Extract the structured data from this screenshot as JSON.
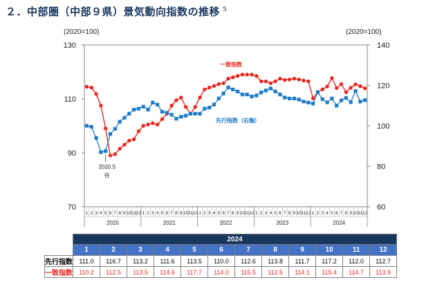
{
  "title": "２．中部圏（中部９県）景気動向指数の推移",
  "title_note": "5",
  "chart_data": {
    "type": "line",
    "left_axis_unit": "(2020=100)",
    "right_axis_unit": "(2020=100)",
    "left_ylim": [
      70,
      130
    ],
    "left_ticks": [
      "130",
      "110",
      "90",
      "70"
    ],
    "right_ylim": [
      60,
      140
    ],
    "right_ticks": [
      "140",
      "120",
      "100",
      "80",
      "60"
    ],
    "month_labels": [
      "1",
      "2",
      "3",
      "4",
      "5",
      "6",
      "7",
      "8",
      "9",
      "10",
      "11",
      "12"
    ],
    "years": [
      "2020",
      "2021",
      "2022",
      "2023",
      "2024"
    ],
    "annotation_line1": "2020.5",
    "annotation_line2": "谷",
    "series": [
      {
        "name": "一致指数",
        "axis": "left",
        "color": "#e8271f",
        "values": [
          114.5,
          114.2,
          111.8,
          107.5,
          99.0,
          89.0,
          89.5,
          91.5,
          93.0,
          94.5,
          95.0,
          98.0,
          100.0,
          100.5,
          101.0,
          100.5,
          102.5,
          104.5,
          107.5,
          109.5,
          110.5,
          107.0,
          104.5,
          107.0,
          110.5,
          113.5,
          114.2,
          114.8,
          115.5,
          115.8,
          117.5,
          118.0,
          118.5,
          119.0,
          119.0,
          119.0,
          118.5,
          116.5,
          116.5,
          115.8,
          116.5,
          117.5,
          117.0,
          117.2,
          117.5,
          117.2,
          116.8,
          116.5,
          110.2,
          112.5,
          113.5,
          114.6,
          117.7,
          114.0,
          115.5,
          112.5,
          114.1,
          115.4,
          114.7,
          113.9
        ]
      },
      {
        "name": "先行指数（右軸）",
        "axis": "right",
        "color": "#1f7bc6",
        "values": [
          100.0,
          99.5,
          94.0,
          87.0,
          87.5,
          96.0,
          98.5,
          102.0,
          104.0,
          106.0,
          108.0,
          108.5,
          109.5,
          108.0,
          111.5,
          110.5,
          107.0,
          106.5,
          105.5,
          103.5,
          104.5,
          105.0,
          106.0,
          106.0,
          106.0,
          108.5,
          109.0,
          110.5,
          113.5,
          116.0,
          119.0,
          118.0,
          117.0,
          115.5,
          115.5,
          114.5,
          115.0,
          116.5,
          117.5,
          118.5,
          117.0,
          115.5,
          114.0,
          113.5,
          113.5,
          113.0,
          112.0,
          111.5,
          111.0,
          116.7,
          113.2,
          111.6,
          113.5,
          110.0,
          112.6,
          113.8,
          111.7,
          117.2,
          112.0,
          112.7
        ]
      }
    ]
  },
  "table": {
    "year": "2024",
    "months": [
      "1",
      "2",
      "3",
      "4",
      "5",
      "6",
      "7",
      "8",
      "9",
      "10",
      "11",
      "12"
    ],
    "row_leading": {
      "label": "先行指数",
      "values": [
        "111.0",
        "116.7",
        "113.2",
        "111.6",
        "113.5",
        "110.0",
        "112.6",
        "113.8",
        "111.7",
        "117.2",
        "112.0",
        "112.7"
      ]
    },
    "row_coincident": {
      "label": "一致指数",
      "values": [
        "110.2",
        "112.5",
        "113.5",
        "114.6",
        "117.7",
        "114.0",
        "115.5",
        "112.5",
        "114.1",
        "115.4",
        "114.7",
        "113.9"
      ]
    }
  }
}
